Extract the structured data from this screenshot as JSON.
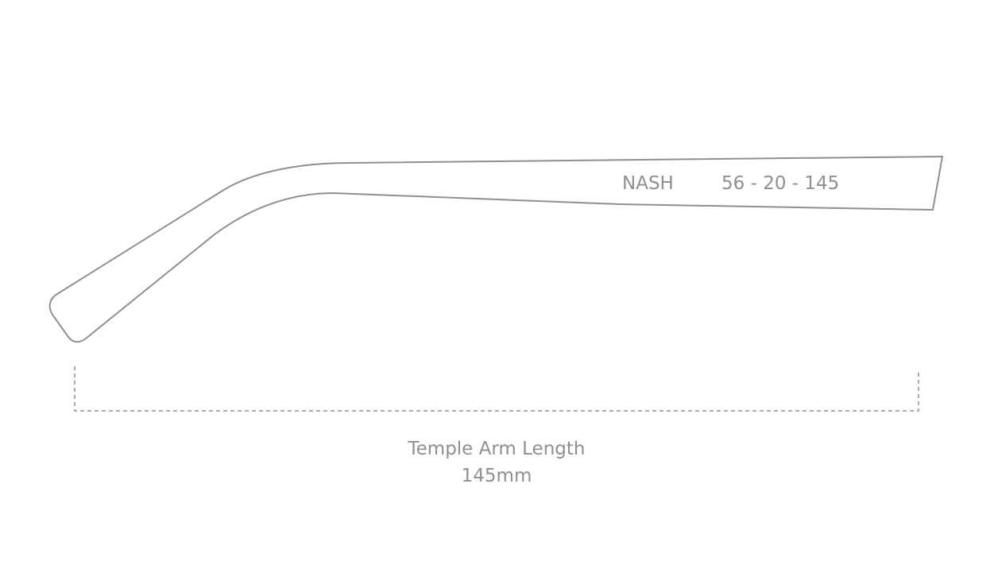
{
  "arm": {
    "model": "NASH",
    "size": "56 - 20 - 145"
  },
  "measurement": {
    "label": "Temple Arm Length",
    "value": "145mm"
  }
}
